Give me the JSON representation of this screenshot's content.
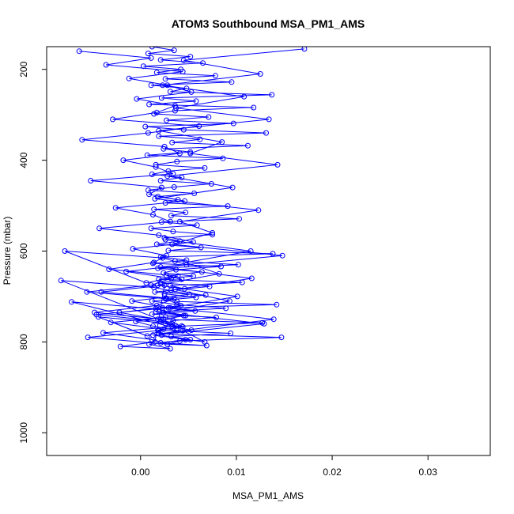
{
  "chart_data": {
    "type": "line",
    "title": "ATOM3 Southbound MSA_PM1_AMS",
    "xlabel": "MSA_PM1_AMS",
    "ylabel": "Pressure (mbar)",
    "xlim": [
      -0.0098,
      0.0365
    ],
    "ylim": [
      1050,
      150
    ],
    "y_reversed": true,
    "x_ticks": [
      0.0,
      0.01,
      0.02,
      0.03
    ],
    "x_tick_labels": [
      "0.00",
      "0.01",
      "0.02",
      "0.03"
    ],
    "y_ticks": [
      200,
      400,
      600,
      800,
      1000
    ],
    "y_tick_labels": [
      "200",
      "400",
      "600",
      "800",
      "1000"
    ],
    "grid": false,
    "legend": "none",
    "series": [
      {
        "color": "#0000ff",
        "marker": "open-circle",
        "x": [
          0.0012,
          0.0035,
          0.0008,
          0.0052,
          0.0021,
          0.0065,
          0.0003,
          0.0042,
          0.0017,
          0.0078,
          0.0026,
          0.0095,
          0.0011,
          0.0048,
          0.0031,
          0.0137,
          0.0022,
          0.0058,
          0.0009,
          0.0118,
          0.0036,
          0.0014,
          0.0071,
          0.0027,
          0.0097,
          0.0005,
          0.0045,
          0.0131,
          0.0019,
          0.0062,
          0.0033,
          0.0112,
          0.0024,
          0.0052,
          0.0007,
          0.0086,
          0.0038,
          0.0016,
          0.0067,
          0.0029,
          0.0012,
          0.0043,
          0.0021,
          0.0074,
          0.0035,
          0.0008,
          0.0056,
          0.0018,
          0.0039,
          0.0026,
          0.0091,
          0.0014,
          0.0047,
          0.0032,
          0.0103,
          0.0022,
          0.0059,
          0.0011,
          0.0034,
          0.0075,
          0.0025,
          0.0041,
          0.0017,
          0.0063,
          0.0029,
          0.0138,
          0.0021,
          0.0048,
          0.0013,
          0.0084,
          0.0037,
          0.0024,
          0.0055,
          0.0019,
          0.0106,
          0.0031,
          0.0046,
          0.0015,
          0.0068,
          0.0027,
          0.0038,
          0.0142,
          0.0023,
          0.0057,
          0.0012,
          0.0079,
          0.0034,
          0.0026,
          0.0044,
          0.0018,
          0.0094,
          0.0032,
          0.0052,
          0.0021,
          0.0069,
          0.0028,
          0.0041,
          0.0147,
          0.0019,
          0.0053,
          0.0033,
          0.0127,
          0.0024,
          0.0047,
          0.0016,
          0.0089,
          0.0038,
          0.0012,
          0.0058,
          0.0025,
          0.0032,
          0.0072,
          0.0021,
          0.0043,
          0.0027,
          0.0064,
          0.0018,
          0.0102,
          0.0036
        ],
        "y": [
          150,
          158,
          165,
          172,
          179,
          186,
          193,
          200,
          207,
          214,
          221,
          228,
          235,
          242,
          249,
          256,
          263,
          270,
          277,
          284,
          291,
          298,
          305,
          312,
          319,
          326,
          333,
          340,
          347,
          354,
          361,
          368,
          375,
          382,
          389,
          396,
          403,
          410,
          417,
          424,
          431,
          438,
          445,
          452,
          459,
          466,
          473,
          480,
          487,
          494,
          501,
          508,
          515,
          522,
          529,
          536,
          543,
          550,
          557,
          564,
          571,
          578,
          585,
          592,
          599,
          606,
          613,
          620,
          627,
          634,
          641,
          648,
          655,
          662,
          669,
          676,
          683,
          690,
          697,
          704,
          711,
          718,
          725,
          732,
          739,
          746,
          753,
          760,
          767,
          774,
          781,
          788,
          795,
          802,
          808,
          805,
          798,
          790,
          782,
          774,
          766,
          758,
          750,
          742,
          734,
          726,
          718,
          710,
          702,
          694,
          686,
          678,
          670,
          662,
          654,
          646,
          638,
          630,
          622
        ]
      },
      {
        "color": "#0000ff",
        "marker": "open-circle",
        "x": [
          -0.0064,
          0.0011,
          -0.0036,
          0.0044,
          -0.0012,
          0.0028,
          0.0053,
          -0.0004,
          0.0036,
          0.0017,
          -0.0029,
          0.0061,
          0.0008,
          -0.0061,
          0.0025,
          0.0041,
          -0.0018,
          0.0016,
          0.0034,
          -0.0052,
          0.0022,
          0.0009,
          0.0046,
          -0.0026,
          0.0013,
          0.0031,
          -0.0043,
          0.0019,
          0.0055,
          -0.0008,
          0.0027,
          0.0014,
          -0.0033,
          0.0039,
          0.0006,
          -0.0079,
          0.0023,
          0.0048,
          -0.0015,
          0.0032,
          0.0011,
          -0.0056,
          0.0026,
          0.0042,
          -0.0022,
          0.0018,
          0.0037,
          -0.0083,
          0.0014,
          0.0051,
          -0.0009,
          0.0029,
          -0.0046,
          0.0021,
          0.0038,
          -0.0072,
          0.0016,
          0.0045,
          -0.0031,
          0.0024,
          0.0007,
          -0.0044,
          0.0033,
          0.0019,
          -0.0055,
          0.0028,
          0.0012,
          -0.0039,
          0.0043,
          0.0021,
          -0.0048,
          0.0017,
          0.0035,
          -0.0041,
          0.0025,
          0.0015,
          -0.0021,
          0.0031,
          0.0009,
          0.0047,
          0.0022,
          0.0038,
          0.0013,
          -0.0005,
          0.0026
        ],
        "y": [
          160,
          175,
          190,
          205,
          220,
          235,
          250,
          265,
          280,
          295,
          310,
          325,
          340,
          355,
          370,
          385,
          400,
          415,
          430,
          445,
          460,
          475,
          490,
          505,
          520,
          535,
          550,
          565,
          580,
          595,
          610,
          625,
          640,
          655,
          670,
          600,
          615,
          630,
          645,
          660,
          675,
          690,
          705,
          720,
          735,
          750,
          765,
          665,
          680,
          695,
          710,
          725,
          740,
          755,
          770,
          712,
          727,
          742,
          757,
          772,
          787,
          745,
          760,
          775,
          790,
          805,
          795,
          780,
          765,
          750,
          735,
          720,
          705,
          690,
          675,
          800,
          810,
          815,
          805,
          795,
          785,
          775,
          765,
          755,
          745
        ]
      },
      {
        "color": "#0000ff",
        "marker": "open-circle",
        "x": [
          0.0171,
          0.0045,
          0.0125,
          0.0023,
          0.0108,
          0.0037,
          0.0134,
          0.0019,
          0.0085,
          0.0052,
          0.0143,
          0.0028,
          0.0096,
          0.0015,
          0.0123,
          0.0041,
          0.0075,
          0.0033,
          0.0148,
          0.0021,
          0.0116,
          0.0036,
          0.0093,
          0.0024,
          0.0129,
          0.0013,
          0.0067,
          0.0044,
          0.0139,
          0.0031,
          0.0101,
          0.0018,
          0.0082,
          0.0047,
          0.0115,
          0.0026
        ],
        "y": [
          155,
          180,
          210,
          235,
          260,
          285,
          310,
          335,
          360,
          385,
          410,
          435,
          460,
          485,
          510,
          535,
          560,
          585,
          610,
          635,
          660,
          685,
          710,
          735,
          760,
          785,
          800,
          775,
          750,
          725,
          700,
          675,
          650,
          625,
          600,
          575
        ]
      }
    ]
  }
}
